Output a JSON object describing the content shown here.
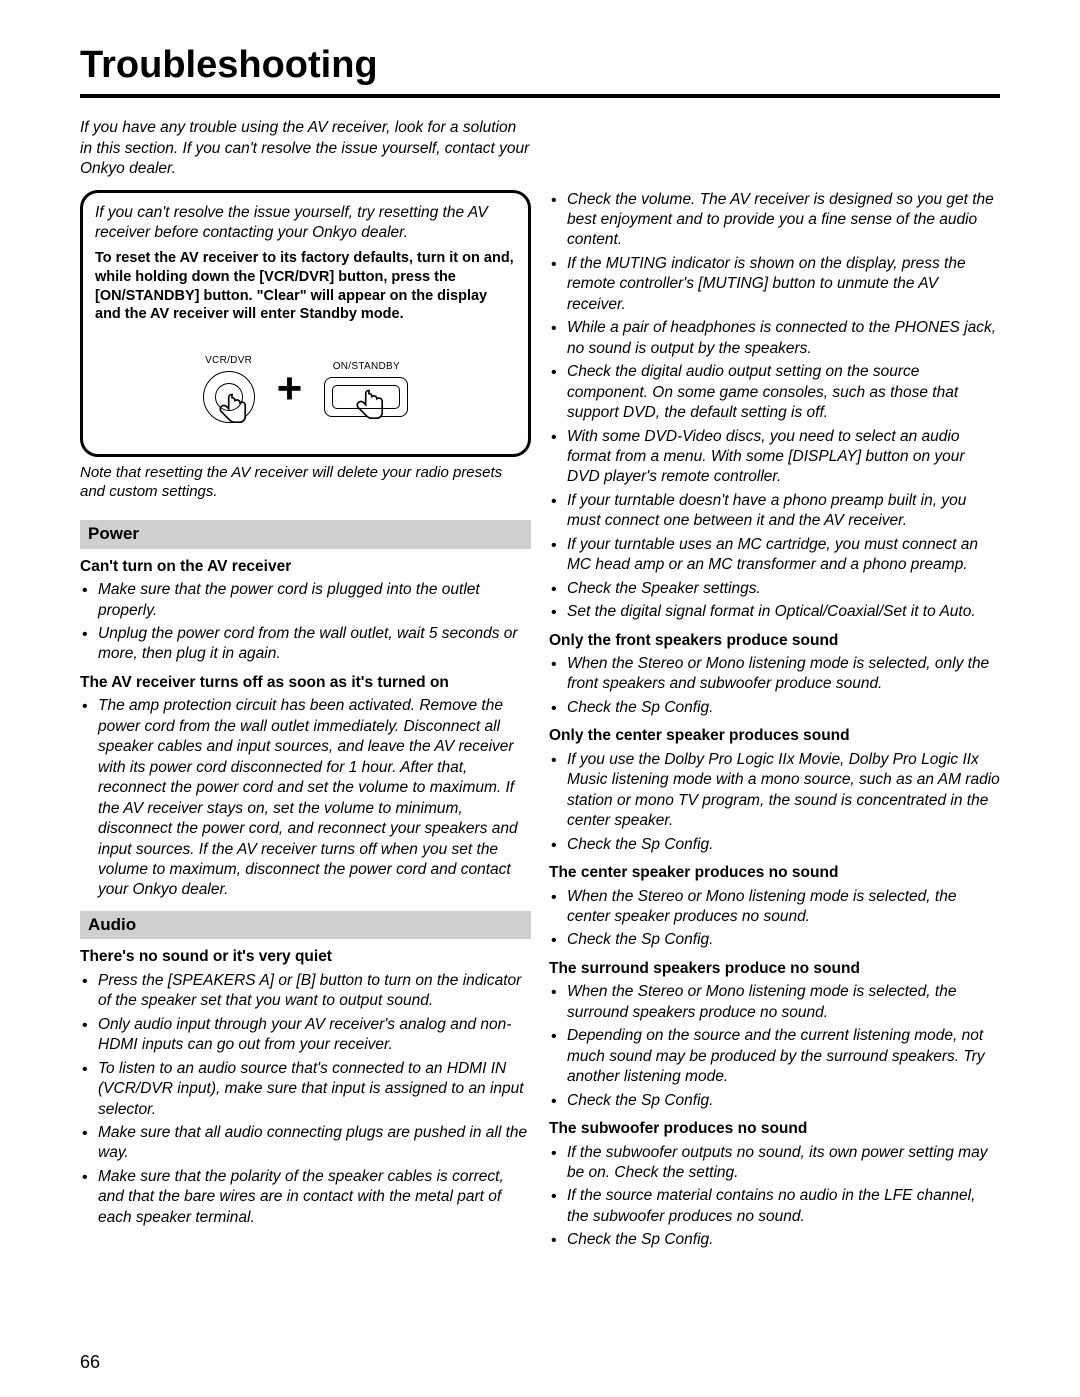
{
  "title": "Troubleshooting",
  "page_number": "66",
  "intro": "If you have any trouble using the AV receiver, look for a solution in this section. If you can't resolve the issue yourself, contact your Onkyo dealer.",
  "resetbox": {
    "lead": "If you can't resolve the issue yourself, try resetting the AV receiver before contacting your Onkyo dealer.",
    "bold": "To reset the AV receiver to its factory defaults, turn it on and, while holding down the [VCR/DVR] button, press the [ON/STANDBY] button. \"Clear\" will appear on the display and the AV receiver will enter Standby mode.",
    "left_lbl": "VCR/DVR",
    "right_lbl": "ON/STANDBY"
  },
  "note": "Note that resetting the AV receiver will delete your radio presets and custom settings.",
  "sections": {
    "power": {
      "heading": "Power",
      "subs": [
        {
          "sub": "Can't turn on the AV receiver",
          "items": [
            "Make sure that the power cord is plugged into the outlet properly.",
            "Unplug the power cord from the wall outlet, wait 5 seconds or more, then plug it in again."
          ]
        },
        {
          "sub": "The AV receiver turns off as soon as it's turned on",
          "items": [
            "The amp protection circuit has been activated. Remove the power cord from the wall outlet immediately. Disconnect all speaker cables and input sources, and leave the AV receiver with its power cord disconnected for 1 hour. After that, reconnect the power cord and set the volume to maximum. If the AV receiver stays on, set the volume to minimum, disconnect the power cord, and reconnect your speakers and input sources. If the AV receiver turns off when you set the volume to maximum, disconnect the power cord and contact your Onkyo dealer."
          ]
        }
      ]
    },
    "audio": {
      "heading": "Audio",
      "subs": [
        {
          "sub": "There's no sound or it's very quiet",
          "items": [
            "Press the [SPEAKERS A] or [B] button to turn on the indicator of the speaker set that you want to output sound.",
            "Only audio input through your AV receiver's analog and non-HDMI inputs can go out from your receiver.",
            "To listen to an audio source that's connected to an HDMI IN (VCR/DVR input), make sure that input is assigned to an input selector.",
            "Make sure that all audio connecting plugs are pushed in all the way.",
            "Make sure that the polarity of the speaker cables is correct, and that the bare wires are in contact with the metal part of each speaker terminal."
          ]
        },
        {
          "sub": "Only the front speakers produce sound",
          "items": [
            "When the Stereo or Mono listening mode is selected, only the front speakers and subwoofer produce sound.",
            "Check the Sp Config."
          ]
        },
        {
          "sub": "Only the center speaker produces sound",
          "items": [
            "If you use the Dolby Pro Logic IIx Movie, Dolby Pro Logic IIx Music listening mode with a mono source, such as an AM radio station or mono TV program, the sound is concentrated in the center speaker.",
            "Check the Sp Config."
          ]
        },
        {
          "sub": "The center speaker produces no sound",
          "items": [
            "When the Stereo or Mono listening mode is selected, the center speaker produces no sound.",
            "Check the Sp Config."
          ]
        },
        {
          "sub": "The surround speakers produce no sound",
          "items": [
            "When the Stereo or Mono listening mode is selected, the surround speakers produce no sound.",
            "Depending on the source and the current listening mode, not much sound may be produced by the surround speakers. Try another listening mode.",
            "Check the Sp Config."
          ]
        },
        {
          "sub": "The subwoofer produces no sound",
          "items": [
            "If the subwoofer outputs no sound, its own power setting may be on. Check the setting.",
            "If the source material contains no audio in the LFE channel, the subwoofer produces no sound.",
            "Check the Sp Config."
          ]
        }
      ]
    },
    "right_top": [
      "Check the volume. The AV receiver is designed so you get the best enjoyment and to provide you a fine sense of the audio content.",
      "If the MUTING indicator is shown on the display, press the remote controller's [MUTING] button to unmute the AV receiver.",
      "While a pair of headphones is connected to the PHONES jack, no sound is output by the speakers.",
      "Check the digital audio output setting on the source component. On some game consoles, such as those that support DVD, the default setting is off.",
      "With some DVD-Video discs, you need to select an audio format from a menu. With some [DISPLAY] button on your DVD player's remote controller.",
      "If your turntable doesn't have a phono preamp built in, you must connect one between it and the AV receiver.",
      "If your turntable uses an MC cartridge, you must connect an MC head amp or an MC transformer and a phono preamp.",
      "Check the Speaker settings.",
      "Set the digital signal format in Optical/Coaxial/Set it to Auto."
    ]
  }
}
